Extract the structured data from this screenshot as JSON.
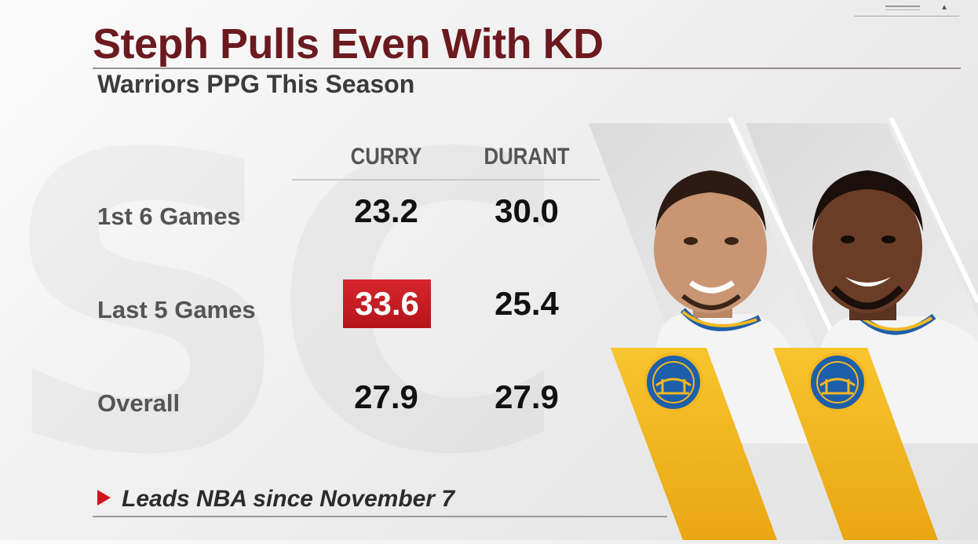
{
  "title": "Steph Pulls Even With KD",
  "subtitle": "Warriors PPG This Season",
  "columns": [
    "CURRY",
    "DURANT"
  ],
  "rows": [
    {
      "label": "1st 6 Games",
      "curry": "23.2",
      "durant": "30.0"
    },
    {
      "label": "Last 5 Games",
      "curry": "33.6",
      "durant": "25.4"
    },
    {
      "label": "Overall",
      "curry": "27.9",
      "durant": "27.9"
    }
  ],
  "highlight": {
    "row": "Last 5 Games",
    "column": "CURRY",
    "color": "#c8161d"
  },
  "footer": "Leads NBA since November 7",
  "colors": {
    "title": "#6b1a1f",
    "accent": "#d0141c",
    "warriors_gold": "#f5b722",
    "warriors_blue": "#1d5fa8"
  },
  "icons": {
    "bullet": "red-triangle-icon",
    "logo": "warriors-logo-icon"
  }
}
